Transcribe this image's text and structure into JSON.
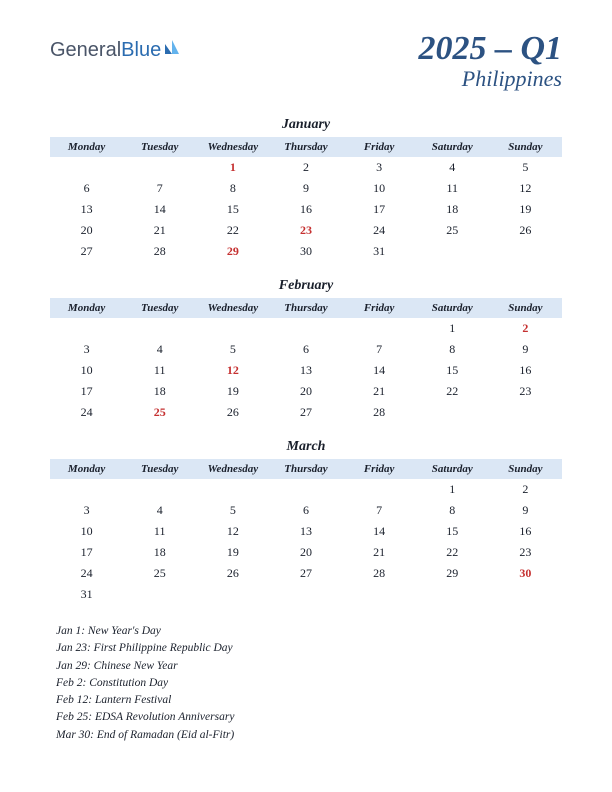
{
  "logo": {
    "part1": "General",
    "part2": "Blue"
  },
  "title": {
    "main": "2025 – Q1",
    "sub": "Philippines"
  },
  "colors": {
    "header_bg": "#dbe7f5",
    "title_color": "#2c5282",
    "holiday_color": "#c53030",
    "text_color": "#1a202c",
    "background": "#ffffff"
  },
  "typography": {
    "title_fontsize": 34,
    "subtitle_fontsize": 22,
    "month_fontsize": 14,
    "dayhead_fontsize": 11,
    "cell_fontsize": 12,
    "holidaylist_fontsize": 11.5,
    "font_family": "Georgia, serif"
  },
  "day_headers": [
    "Monday",
    "Tuesday",
    "Wednesday",
    "Thursday",
    "Friday",
    "Saturday",
    "Sunday"
  ],
  "months": [
    {
      "name": "January",
      "weeks": [
        [
          "",
          "",
          "1",
          "2",
          "3",
          "4",
          "5"
        ],
        [
          "6",
          "7",
          "8",
          "9",
          "10",
          "11",
          "12"
        ],
        [
          "13",
          "14",
          "15",
          "16",
          "17",
          "18",
          "19"
        ],
        [
          "20",
          "21",
          "22",
          "23",
          "24",
          "25",
          "26"
        ],
        [
          "27",
          "28",
          "29",
          "30",
          "31",
          "",
          ""
        ]
      ],
      "holidays_idx": [
        [
          0,
          2
        ],
        [
          3,
          3
        ],
        [
          4,
          2
        ]
      ]
    },
    {
      "name": "February",
      "weeks": [
        [
          "",
          "",
          "",
          "",
          "",
          "1",
          "2"
        ],
        [
          "3",
          "4",
          "5",
          "6",
          "7",
          "8",
          "9"
        ],
        [
          "10",
          "11",
          "12",
          "13",
          "14",
          "15",
          "16"
        ],
        [
          "17",
          "18",
          "19",
          "20",
          "21",
          "22",
          "23"
        ],
        [
          "24",
          "25",
          "26",
          "27",
          "28",
          "",
          ""
        ]
      ],
      "holidays_idx": [
        [
          0,
          6
        ],
        [
          2,
          2
        ],
        [
          4,
          1
        ]
      ]
    },
    {
      "name": "March",
      "weeks": [
        [
          "",
          "",
          "",
          "",
          "",
          "1",
          "2"
        ],
        [
          "3",
          "4",
          "5",
          "6",
          "7",
          "8",
          "9"
        ],
        [
          "10",
          "11",
          "12",
          "13",
          "14",
          "15",
          "16"
        ],
        [
          "17",
          "18",
          "19",
          "20",
          "21",
          "22",
          "23"
        ],
        [
          "24",
          "25",
          "26",
          "27",
          "28",
          "29",
          "30"
        ],
        [
          "31",
          "",
          "",
          "",
          "",
          "",
          ""
        ]
      ],
      "holidays_idx": [
        [
          4,
          6
        ]
      ]
    }
  ],
  "holiday_list": [
    "Jan 1: New Year's Day",
    "Jan 23: First Philippine Republic Day",
    "Jan 29: Chinese New Year",
    "Feb 2: Constitution Day",
    "Feb 12: Lantern Festival",
    "Feb 25: EDSA Revolution Anniversary",
    "Mar 30: End of Ramadan (Eid al-Fitr)"
  ]
}
